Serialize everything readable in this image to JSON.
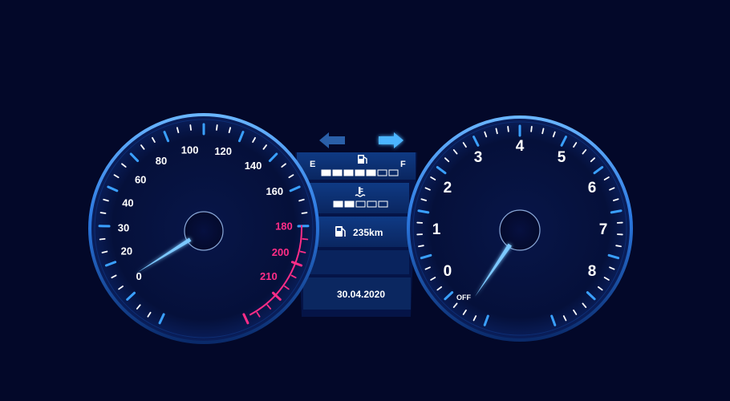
{
  "colors": {
    "background": "#030829",
    "accent": "#3aa0ff",
    "needle": "#7cc8ff",
    "redzone": "#ff2d87",
    "text": "#ffffff",
    "panel": "#0c2b66"
  },
  "speedometer": {
    "labels": [
      "0",
      "20",
      "30",
      "40",
      "60",
      "80",
      "100",
      "120",
      "140",
      "160",
      "180",
      "200",
      "210"
    ],
    "red_labels": [
      "180",
      "200",
      "210"
    ],
    "needle_value": "0"
  },
  "tachometer": {
    "labels": [
      "0",
      "1",
      "2",
      "3",
      "4",
      "5",
      "6",
      "7",
      "8"
    ],
    "off_label": "OFF",
    "needle_value": "OFF"
  },
  "indicators": {
    "turn_left_icon": "arrow-left-icon",
    "turn_right_icon": "arrow-right-icon",
    "turn_right_active": true
  },
  "fuel": {
    "empty_label": "E",
    "full_label": "F",
    "icon": "fuel-pump-icon",
    "segments_total": 7,
    "segments_filled": 5
  },
  "coolant": {
    "icon": "coolant-temp-icon",
    "segments_total": 5,
    "segments_filled": 2
  },
  "range": {
    "icon": "fuel-pump-icon",
    "value": "235km"
  },
  "date": "30.04.2020"
}
